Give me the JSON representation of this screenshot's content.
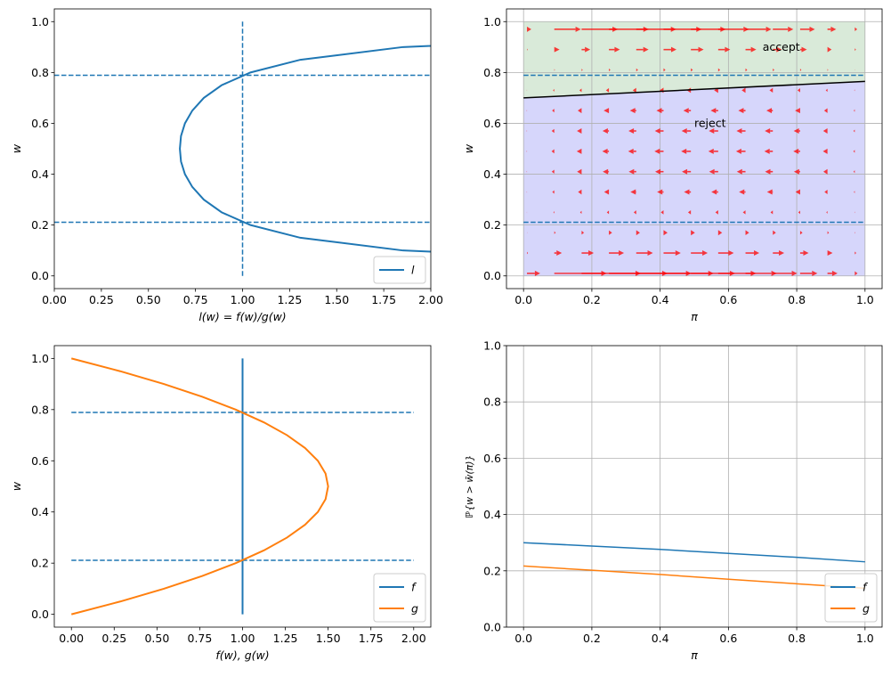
{
  "chart_data": [
    {
      "type": "line",
      "xlabel": "l(w) = f(w)/g(w)",
      "ylabel": "w",
      "xlim": [
        0,
        2
      ],
      "ylim": [
        -0.05,
        1.05
      ],
      "xticks": [
        "0.00",
        "0.25",
        "0.50",
        "0.75",
        "1.00",
        "1.25",
        "1.50",
        "1.75",
        "2.00"
      ],
      "yticks": [
        "0.0",
        "0.2",
        "0.4",
        "0.6",
        "0.8",
        "1.0"
      ],
      "grid": false,
      "legend": {
        "placement": "lower-right",
        "entries": [
          "l"
        ]
      },
      "series": [
        {
          "name": "l",
          "color": "#1f77b4",
          "w": [
            0.05,
            0.1,
            0.15,
            0.2,
            0.25,
            0.3,
            0.35,
            0.4,
            0.45,
            0.5,
            0.55,
            0.6,
            0.65,
            0.7,
            0.75,
            0.8,
            0.85,
            0.9,
            0.95
          ],
          "x": [
            3.509,
            1.852,
            1.307,
            1.042,
            0.889,
            0.794,
            0.733,
            0.694,
            0.673,
            0.667,
            0.673,
            0.694,
            0.733,
            0.794,
            0.889,
            1.042,
            1.307,
            1.852,
            3.509
          ]
        }
      ],
      "hlines": [
        0.211,
        0.789
      ],
      "vline": {
        "x": 1.0,
        "from": 0,
        "to": 1
      },
      "line_color": "#1f77b4"
    },
    {
      "type": "quiver",
      "xlabel": "π",
      "ylabel": "w",
      "xlim": [
        -0.05,
        1.05
      ],
      "ylim": [
        -0.05,
        1.05
      ],
      "xticks": [
        "0.0",
        "0.2",
        "0.4",
        "0.6",
        "0.8",
        "1.0"
      ],
      "yticks": [
        "0.0",
        "0.2",
        "0.4",
        "0.6",
        "0.8",
        "1.0"
      ],
      "grid": true,
      "boundary": {
        "pi": [
          0,
          1
        ],
        "w": [
          0.7,
          0.765
        ],
        "color": "#000000"
      },
      "regions": [
        {
          "label": "accept",
          "color": "#d9ead9",
          "label_at": [
            0.7,
            0.9
          ]
        },
        {
          "label": "reject",
          "color": "#d6d6fb",
          "label_at": [
            0.5,
            0.6
          ]
        }
      ],
      "hlines": [
        0.211,
        0.789
      ],
      "quiver": {
        "pi": [
          0.01,
          0.09,
          0.17,
          0.25,
          0.33,
          0.41,
          0.49,
          0.57,
          0.65,
          0.73,
          0.81,
          0.89,
          0.97
        ],
        "w": [
          0.01,
          0.09,
          0.17,
          0.25,
          0.33,
          0.41,
          0.49,
          0.57,
          0.65,
          0.73,
          0.81,
          0.89,
          0.97
        ],
        "f": "1",
        "g": "6w(1-w)",
        "color": "#ff0000"
      }
    },
    {
      "type": "line",
      "xlabel": "f(w), g(w)",
      "ylabel": "w",
      "xlim": [
        -0.1,
        2.1
      ],
      "ylim": [
        -0.05,
        1.05
      ],
      "xticks": [
        "0.00",
        "0.25",
        "0.50",
        "0.75",
        "1.00",
        "1.25",
        "1.50",
        "1.75",
        "2.00"
      ],
      "yticks": [
        "0.0",
        "0.2",
        "0.4",
        "0.6",
        "0.8",
        "1.0"
      ],
      "grid": false,
      "legend": {
        "placement": "lower-right",
        "entries": [
          "f",
          "g"
        ]
      },
      "series": [
        {
          "name": "f",
          "color": "#1f77b4",
          "w": [
            0,
            1
          ],
          "x": [
            1,
            1
          ]
        },
        {
          "name": "g",
          "color": "#ff7f0e",
          "w": [
            0,
            0.05,
            0.1,
            0.15,
            0.2,
            0.25,
            0.3,
            0.35,
            0.4,
            0.45,
            0.5,
            0.55,
            0.6,
            0.65,
            0.7,
            0.75,
            0.8,
            0.85,
            0.9,
            0.95,
            1
          ],
          "x": [
            0,
            0.285,
            0.54,
            0.765,
            0.96,
            1.125,
            1.26,
            1.365,
            1.44,
            1.485,
            1.5,
            1.485,
            1.44,
            1.365,
            1.26,
            1.125,
            0.96,
            0.765,
            0.54,
            0.285,
            0
          ]
        }
      ],
      "hlines": [
        0.211,
        0.789
      ],
      "hline_span": [
        0,
        2
      ],
      "line_color": "#1f77b4"
    },
    {
      "type": "line",
      "xlabel": "π",
      "ylabel": "ℙ{w > w̄(π)}",
      "xlim": [
        -0.05,
        1.05
      ],
      "ylim": [
        0,
        1
      ],
      "xticks": [
        "0.0",
        "0.2",
        "0.4",
        "0.6",
        "0.8",
        "1.0"
      ],
      "yticks": [
        "0.0",
        "0.2",
        "0.4",
        "0.6",
        "0.8",
        "1.0"
      ],
      "grid": true,
      "legend": {
        "placement": "lower-right",
        "entries": [
          "f",
          "g"
        ]
      },
      "series": [
        {
          "name": "f",
          "color": "#1f77b4",
          "x": [
            0,
            0.2,
            0.4,
            0.6,
            0.8,
            1.0
          ],
          "y": [
            0.3,
            0.288,
            0.276,
            0.262,
            0.248,
            0.232
          ]
        },
        {
          "name": "g",
          "color": "#ff7f0e",
          "x": [
            0,
            0.2,
            0.4,
            0.6,
            0.8,
            1.0
          ],
          "y": [
            0.217,
            0.202,
            0.187,
            0.17,
            0.154,
            0.138
          ]
        }
      ]
    }
  ]
}
